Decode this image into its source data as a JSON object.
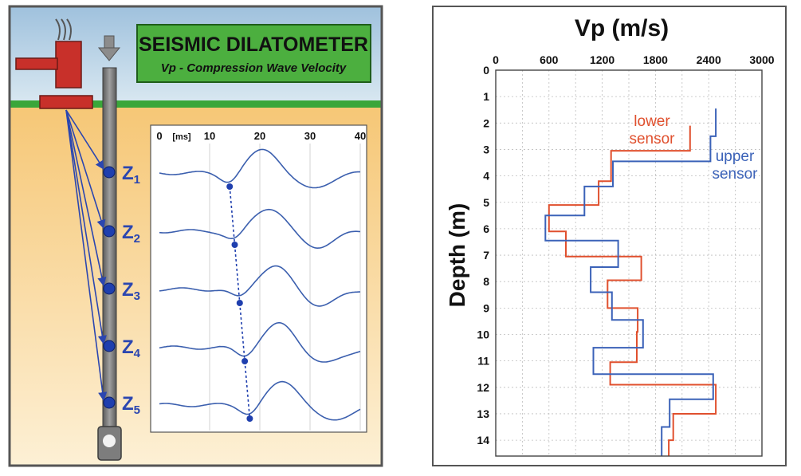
{
  "title_box": {
    "line1": "SEISMIC DILATOMETER",
    "line2": "Vp - Compression Wave Velocity"
  },
  "depth_labels": [
    {
      "letter": "Z",
      "sub": "1"
    },
    {
      "letter": "Z",
      "sub": "2"
    },
    {
      "letter": "Z",
      "sub": "3"
    },
    {
      "letter": "Z",
      "sub": "4"
    },
    {
      "letter": "Z",
      "sub": "5"
    }
  ],
  "seismogram": {
    "unit": "[ms]",
    "ticks": [
      "0",
      "10",
      "20",
      "30",
      "40"
    ],
    "xlim": [
      0,
      40
    ],
    "first_arrivals_ms": [
      14,
      15,
      16,
      17,
      18
    ]
  },
  "chart_data": {
    "type": "line",
    "title": "Vp (m/s)",
    "xlabel": "",
    "ylabel": "Depth (m)",
    "xlim": [
      0,
      3000
    ],
    "ylim": [
      0,
      14.6
    ],
    "xticks": [
      "0",
      "600",
      "1200",
      "1800",
      "2400",
      "3000"
    ],
    "yticks": [
      "0",
      "1",
      "2",
      "3",
      "4",
      "5",
      "6",
      "7",
      "8",
      "9",
      "10",
      "11",
      "12",
      "13",
      "14"
    ],
    "grid": true,
    "series": [
      {
        "label": [
          "lower",
          "sensor"
        ],
        "color": "#e0502e",
        "points": [
          [
            2190,
            2.1
          ],
          [
            2190,
            3.05
          ],
          [
            1300,
            3.05
          ],
          [
            1300,
            4.2
          ],
          [
            1160,
            4.2
          ],
          [
            1160,
            5.1
          ],
          [
            600,
            5.1
          ],
          [
            600,
            6.1
          ],
          [
            790,
            6.1
          ],
          [
            790,
            7.05
          ],
          [
            1640,
            7.05
          ],
          [
            1640,
            7.95
          ],
          [
            1260,
            7.95
          ],
          [
            1260,
            9.0
          ],
          [
            1600,
            9.0
          ],
          [
            1600,
            9.9
          ],
          [
            1590,
            9.9
          ],
          [
            1590,
            11.05
          ],
          [
            1290,
            11.05
          ],
          [
            1290,
            11.9
          ],
          [
            2480,
            11.9
          ],
          [
            2480,
            13.0
          ],
          [
            2000,
            13.0
          ],
          [
            2000,
            14.0
          ],
          [
            1950,
            14.0
          ],
          [
            1950,
            14.6
          ]
        ]
      },
      {
        "label": [
          "upper",
          "sensor"
        ],
        "color": "#3b62b8",
        "points": [
          [
            2480,
            1.45
          ],
          [
            2480,
            2.5
          ],
          [
            2420,
            2.5
          ],
          [
            2420,
            3.45
          ],
          [
            1320,
            3.45
          ],
          [
            1320,
            4.4
          ],
          [
            1000,
            4.4
          ],
          [
            1000,
            5.5
          ],
          [
            560,
            5.5
          ],
          [
            560,
            6.45
          ],
          [
            1380,
            6.45
          ],
          [
            1380,
            7.45
          ],
          [
            1070,
            7.45
          ],
          [
            1070,
            8.4
          ],
          [
            1310,
            8.4
          ],
          [
            1310,
            9.45
          ],
          [
            1660,
            9.45
          ],
          [
            1660,
            10.5
          ],
          [
            1100,
            10.5
          ],
          [
            1100,
            11.5
          ],
          [
            2450,
            11.5
          ],
          [
            2450,
            12.45
          ],
          [
            1960,
            12.45
          ],
          [
            1960,
            13.5
          ],
          [
            1870,
            13.5
          ],
          [
            1870,
            14.6
          ]
        ]
      }
    ]
  }
}
